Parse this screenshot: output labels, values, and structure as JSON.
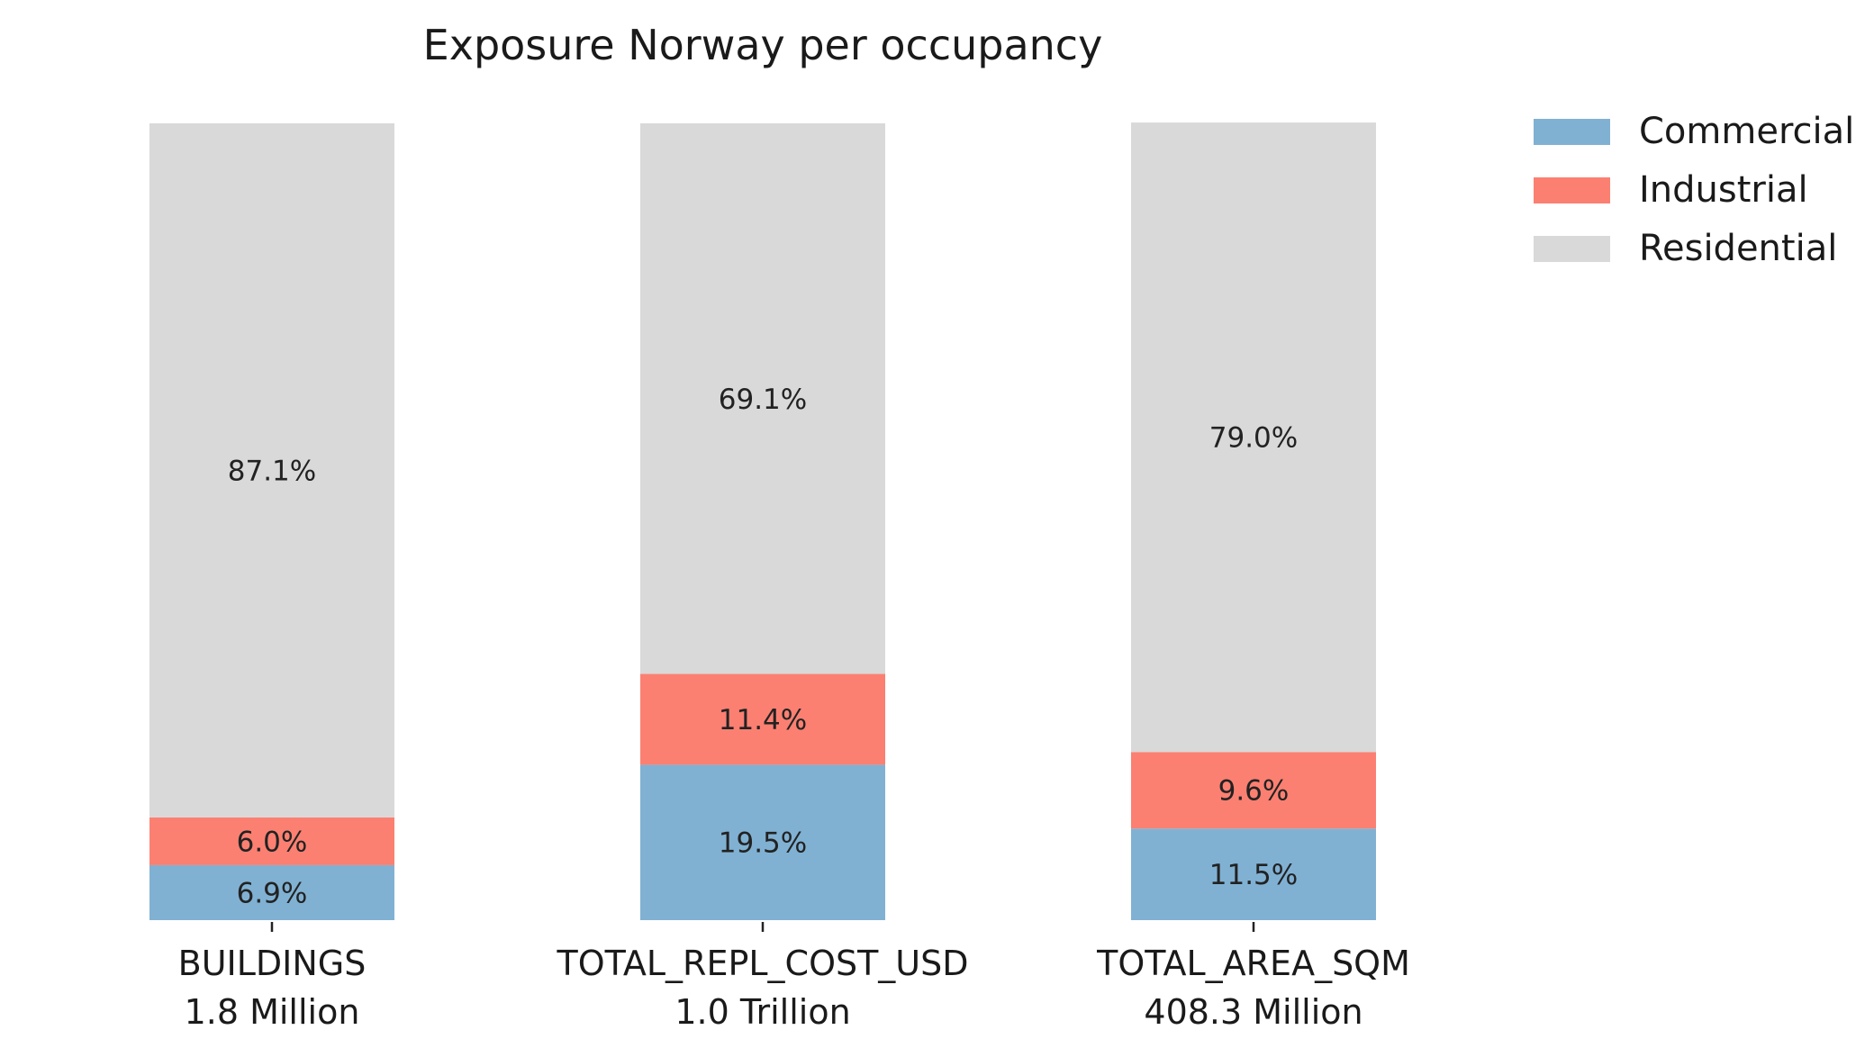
{
  "chart_data": {
    "type": "bar",
    "stacked": true,
    "normalized_percent": true,
    "title": "Exposure Norway per occupancy",
    "xlabel": "",
    "ylabel": "",
    "ylim": [
      0,
      100
    ],
    "grid": false,
    "legend": {
      "placement": "top-right-outside"
    },
    "categories": [
      "BUILDINGS",
      "TOTAL_REPL_COST_USD",
      "TOTAL_AREA_SQM"
    ],
    "category_totals": [
      "1.8 Million",
      "1.0 Trillion",
      "408.3 Million"
    ],
    "series": [
      {
        "name": "Commercial",
        "color": "#80b1d3",
        "values": [
          6.9,
          19.5,
          11.5
        ],
        "labels": [
          "6.9%",
          "19.5%",
          "11.5%"
        ]
      },
      {
        "name": "Industrial",
        "color": "#fb8072",
        "values": [
          6.0,
          11.4,
          9.6
        ],
        "labels": [
          "6.0%",
          "11.4%",
          "9.6%"
        ]
      },
      {
        "name": "Residential",
        "color": "#d9d9d9",
        "values": [
          87.1,
          69.1,
          79.0
        ],
        "labels": [
          "87.1%",
          "69.1%",
          "79.0%"
        ]
      }
    ]
  }
}
